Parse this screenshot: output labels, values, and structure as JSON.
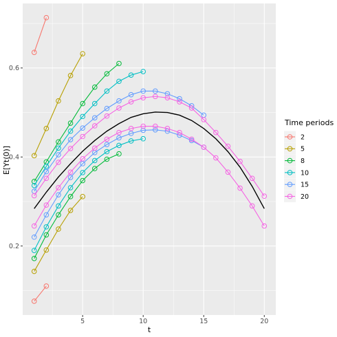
{
  "chart_data": {
    "type": "line",
    "xlabel": "t",
    "ylabel": "E[Yt(0)]",
    "xlim": [
      0.05,
      20.95
    ],
    "ylim": [
      0.045,
      0.745
    ],
    "x_ticks": [
      5,
      10,
      15,
      20
    ],
    "y_ticks": [
      0.2,
      0.4,
      0.6
    ],
    "x_tick_labels": [
      "5",
      "10",
      "15",
      "20"
    ],
    "y_tick_labels": [
      "0.2",
      "0.4",
      "0.6"
    ],
    "grid": true,
    "legend": {
      "title": "Time periods",
      "position": "right",
      "entries": [
        "2",
        "5",
        "8",
        "10",
        "15",
        "20"
      ]
    },
    "reference_curve": {
      "color": "#000000",
      "x": [
        1,
        2,
        3,
        4,
        5,
        6,
        7,
        8,
        9,
        10,
        11,
        12,
        13,
        14,
        15,
        16,
        17,
        18,
        19,
        20
      ],
      "y": [
        0.284,
        0.321,
        0.355,
        0.385,
        0.413,
        0.437,
        0.458,
        0.475,
        0.489,
        0.497,
        0.501,
        0.5,
        0.494,
        0.482,
        0.464,
        0.441,
        0.412,
        0.377,
        0.334,
        0.284
      ]
    },
    "series": [
      {
        "name": "2",
        "color": "#F8766D",
        "lines": [
          {
            "x": [
              1,
              2
            ],
            "y": [
              0.635,
              0.713
            ]
          },
          {
            "x": [
              1,
              2
            ],
            "y": [
              0.076,
              0.11
            ]
          }
        ]
      },
      {
        "name": "5",
        "color": "#B79F00",
        "lines": [
          {
            "x": [
              1,
              2,
              3,
              4,
              5
            ],
            "y": [
              0.403,
              0.464,
              0.526,
              0.583,
              0.632
            ]
          },
          {
            "x": [
              1,
              2,
              3,
              4,
              5
            ],
            "y": [
              0.143,
              0.191,
              0.238,
              0.28,
              0.311
            ]
          }
        ]
      },
      {
        "name": "8",
        "color": "#00BA38",
        "lines": [
          {
            "x": [
              1,
              2,
              3,
              4,
              5,
              6,
              7,
              8
            ],
            "y": [
              0.345,
              0.389,
              0.434,
              0.476,
              0.52,
              0.557,
              0.587,
              0.61
            ]
          },
          {
            "x": [
              1,
              2,
              3,
              4,
              5,
              6,
              7,
              8
            ],
            "y": [
              0.172,
              0.225,
              0.27,
              0.311,
              0.347,
              0.374,
              0.395,
              0.407
            ]
          }
        ]
      },
      {
        "name": "10",
        "color": "#00BFC4",
        "lines": [
          {
            "x": [
              1,
              2,
              3,
              4,
              5,
              6,
              7,
              8,
              9,
              10
            ],
            "y": [
              0.336,
              0.379,
              0.42,
              0.458,
              0.491,
              0.52,
              0.548,
              0.57,
              0.584,
              0.592
            ]
          },
          {
            "x": [
              1,
              2,
              3,
              4,
              5,
              6,
              7,
              8,
              9,
              10
            ],
            "y": [
              0.19,
              0.243,
              0.29,
              0.331,
              0.365,
              0.392,
              0.412,
              0.426,
              0.436,
              0.441
            ]
          }
        ]
      },
      {
        "name": "15",
        "color": "#619CFF",
        "lines": [
          {
            "x": [
              1,
              2,
              3,
              4,
              5,
              6,
              7,
              8,
              9,
              10,
              11,
              12,
              13,
              14,
              15
            ],
            "y": [
              0.323,
              0.367,
              0.405,
              0.439,
              0.465,
              0.488,
              0.509,
              0.526,
              0.54,
              0.548,
              0.548,
              0.542,
              0.531,
              0.515,
              0.494
            ]
          },
          {
            "x": [
              1,
              2,
              3,
              4,
              5,
              6,
              7,
              8,
              9,
              10,
              11,
              12,
              13,
              14,
              15
            ],
            "y": [
              0.22,
              0.27,
              0.315,
              0.354,
              0.385,
              0.41,
              0.428,
              0.443,
              0.453,
              0.46,
              0.461,
              0.458,
              0.449,
              0.437,
              0.422
            ]
          }
        ]
      },
      {
        "name": "20",
        "color": "#F564E3",
        "lines": [
          {
            "x": [
              1,
              2,
              3,
              4,
              5,
              6,
              7,
              8,
              9,
              10,
              11,
              12,
              13,
              14,
              15,
              16,
              17,
              18,
              19,
              20
            ],
            "y": [
              0.313,
              0.352,
              0.388,
              0.419,
              0.446,
              0.47,
              0.492,
              0.51,
              0.524,
              0.533,
              0.536,
              0.533,
              0.524,
              0.51,
              0.484,
              0.455,
              0.424,
              0.39,
              0.352,
              0.312
            ]
          },
          {
            "x": [
              1,
              2,
              3,
              4,
              5,
              6,
              7,
              8,
              9,
              10,
              11,
              12,
              13,
              14,
              15,
              16,
              17,
              18,
              19,
              20
            ],
            "y": [
              0.245,
              0.292,
              0.331,
              0.366,
              0.396,
              0.42,
              0.44,
              0.455,
              0.464,
              0.469,
              0.469,
              0.464,
              0.455,
              0.44,
              0.422,
              0.398,
              0.366,
              0.33,
              0.29,
              0.245
            ]
          }
        ]
      }
    ]
  }
}
